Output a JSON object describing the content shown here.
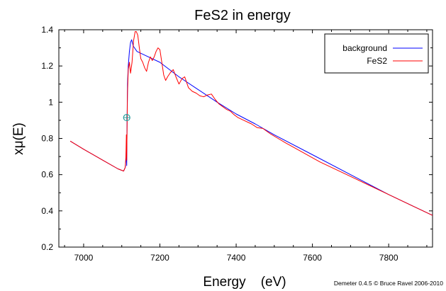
{
  "chart_data": {
    "type": "line",
    "title": "FeS2 in energy",
    "xlabel": "Energy    (eV)",
    "ylabel": "xμ(E)",
    "xlim": [
      6935,
      7915
    ],
    "ylim": [
      0.2,
      1.4
    ],
    "xticks": [
      "7000",
      "7200",
      "7400",
      "7600",
      "7800"
    ],
    "yticks": [
      "0.2",
      "0.4",
      "0.6",
      "0.8",
      "1",
      "1.2",
      "1.4"
    ],
    "grid": false,
    "legend_position": "top-right",
    "series": [
      {
        "name": "background",
        "color": "#0000ff",
        "x": [
          6965,
          7000,
          7050,
          7090,
          7105,
          7109,
          7111,
          7112,
          7113,
          7114,
          7115,
          7117,
          7120,
          7123,
          7126,
          7130,
          7140,
          7160,
          7200,
          7250,
          7300,
          7350,
          7400,
          7450,
          7500,
          7600,
          7700,
          7800,
          7915
        ],
        "y": [
          0.785,
          0.74,
          0.68,
          0.632,
          0.62,
          0.64,
          0.68,
          0.76,
          0.65,
          0.92,
          1.1,
          1.2,
          1.28,
          1.33,
          1.345,
          1.31,
          1.28,
          1.26,
          1.22,
          1.14,
          1.07,
          1.0,
          0.935,
          0.88,
          0.82,
          0.71,
          0.6,
          0.49,
          0.375
        ]
      },
      {
        "name": "FeS2",
        "color": "#ff0000",
        "x": [
          6965,
          7000,
          7050,
          7090,
          7105,
          7109,
          7111,
          7112,
          7113,
          7114,
          7115,
          7117,
          7120,
          7123,
          7127,
          7131,
          7135,
          7138,
          7142,
          7146,
          7150,
          7155,
          7160,
          7165,
          7170,
          7175,
          7180,
          7185,
          7190,
          7195,
          7200,
          7205,
          7210,
          7215,
          7220,
          7228,
          7235,
          7242,
          7250,
          7258,
          7265,
          7275,
          7285,
          7295,
          7305,
          7315,
          7325,
          7335,
          7345,
          7355,
          7365,
          7375,
          7385,
          7395,
          7405,
          7420,
          7440,
          7455,
          7470,
          7490,
          7510,
          7530,
          7560,
          7590,
          7620,
          7650,
          7700,
          7750,
          7800,
          7860,
          7915
        ],
        "y": [
          0.785,
          0.74,
          0.68,
          0.632,
          0.62,
          0.64,
          0.7,
          0.82,
          0.68,
          0.9,
          1.05,
          1.18,
          1.22,
          1.16,
          1.22,
          1.34,
          1.39,
          1.39,
          1.37,
          1.3,
          1.24,
          1.22,
          1.19,
          1.17,
          1.22,
          1.25,
          1.23,
          1.25,
          1.28,
          1.3,
          1.29,
          1.22,
          1.15,
          1.12,
          1.14,
          1.165,
          1.18,
          1.14,
          1.1,
          1.13,
          1.14,
          1.08,
          1.06,
          1.05,
          1.035,
          1.03,
          1.04,
          1.045,
          1.015,
          0.99,
          0.975,
          0.96,
          0.95,
          0.93,
          0.915,
          0.9,
          0.88,
          0.86,
          0.855,
          0.825,
          0.8,
          0.775,
          0.74,
          0.705,
          0.67,
          0.64,
          0.59,
          0.54,
          0.49,
          0.43,
          0.375
        ]
      }
    ],
    "marker": {
      "x": 7113,
      "y": 0.915,
      "color": "#2a9e9e"
    }
  },
  "credit": "Demeter 0.4.5 © Bruce Ravel 2006-2010"
}
